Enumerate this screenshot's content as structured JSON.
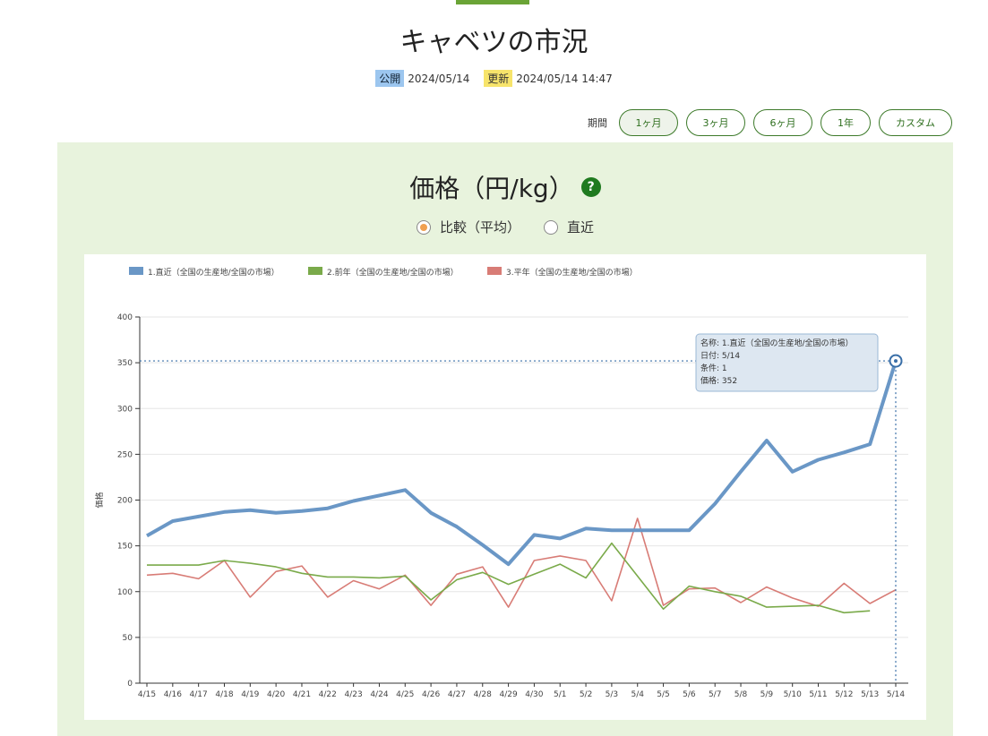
{
  "page": {
    "title": "キャベツの市況",
    "published_label": "公開",
    "published_date": "2024/05/14",
    "updated_label": "更新",
    "updated_date": "2024/05/14 14:47"
  },
  "period": {
    "label": "期間",
    "options": [
      "1ヶ月",
      "3ヶ月",
      "6ヶ月",
      "1年",
      "カスタム"
    ],
    "selected": "1ヶ月"
  },
  "panel": {
    "title": "価格（円/kg）",
    "help": "?",
    "radio_compare": "比較（平均）",
    "radio_recent": "直近",
    "selected_radio": "比較（平均）"
  },
  "tooltip": {
    "line1": "名称: 1.直近（全国の生産地/全国の市場）",
    "line2": "日付: 5/14",
    "line3": "条件: 1",
    "line4": "価格: 352"
  },
  "colors": {
    "accent": "#6aa436",
    "series1": "#6a97c6",
    "series2": "#7aaa4a",
    "series3": "#d87c76"
  },
  "chart_data": {
    "type": "line",
    "ylabel": "価格",
    "ylim": [
      0,
      400
    ],
    "yticks": [
      0,
      50,
      100,
      150,
      200,
      250,
      300,
      350,
      400
    ],
    "grid": true,
    "legend_position": "top-left",
    "categories": [
      "4/15",
      "4/16",
      "4/17",
      "4/18",
      "4/19",
      "4/20",
      "4/21",
      "4/22",
      "4/23",
      "4/24",
      "4/25",
      "4/26",
      "4/27",
      "4/28",
      "4/29",
      "4/30",
      "5/1",
      "5/2",
      "5/3",
      "5/4",
      "5/5",
      "5/6",
      "5/7",
      "5/8",
      "5/9",
      "5/10",
      "5/11",
      "5/12",
      "5/13",
      "5/14"
    ],
    "series": [
      {
        "name": "1.直近（全国の生産地/全国の市場）",
        "values": [
          161,
          177,
          182,
          187,
          189,
          186,
          188,
          191,
          199,
          205,
          211,
          186,
          171,
          151,
          130,
          162,
          158,
          169,
          167,
          167,
          167,
          167,
          196,
          231,
          265,
          231,
          244,
          252,
          261,
          352
        ]
      },
      {
        "name": "2.前年（全国の生産地/全国の市場）",
        "values": [
          129,
          129,
          129,
          134,
          131,
          127,
          120,
          116,
          116,
          115,
          117,
          91,
          113,
          121,
          108,
          119,
          130,
          115,
          153,
          117,
          81,
          106,
          100,
          95,
          83,
          84,
          85,
          77,
          79,
          null
        ]
      },
      {
        "name": "3.平年（全国の生産地/全国の市場）",
        "values": [
          118,
          120,
          114,
          134,
          94,
          122,
          128,
          94,
          112,
          103,
          118,
          85,
          119,
          127,
          83,
          134,
          139,
          134,
          90,
          180,
          85,
          103,
          104,
          88,
          105,
          93,
          84,
          109,
          87,
          102
        ]
      }
    ]
  }
}
